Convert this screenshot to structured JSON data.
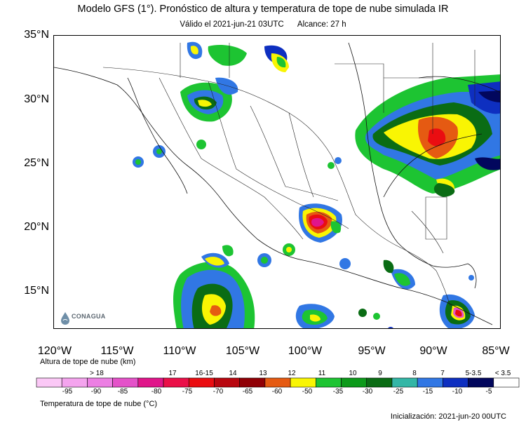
{
  "header": {
    "title": "Modelo GFS (1°). Pronóstico de altura y temperatura de tope de nube simulada IR",
    "valid": "Válido el 2021-jun-21 03UTC",
    "range": "Alcance: 27 h"
  },
  "axes": {
    "lat_labels": [
      "35°N",
      "30°N",
      "25°N",
      "20°N",
      "15°N"
    ],
    "lon_labels": [
      "120°W",
      "115°W",
      "110°W",
      "105°W",
      "100°W",
      "95°W",
      "90°W",
      "85°W"
    ]
  },
  "colorbar": {
    "height_title": "Altura de tope de nube (km)",
    "temp_title": "Temperatura de tope de nube (°C)",
    "height_labels": [
      "> 18",
      "17",
      "16-15",
      "14",
      "13",
      "12",
      "11",
      "10",
      "9",
      "8",
      "7",
      "5-3.5",
      "< 3.5"
    ],
    "temp_labels": [
      "-95",
      "-90",
      "-85",
      "-80",
      "-75",
      "-70",
      "-65",
      "-60",
      "-50",
      "-35",
      "-30",
      "-25",
      "-15",
      "-10",
      "-5"
    ],
    "colors": [
      "#fbc8f6",
      "#f4a4ee",
      "#ec7fe3",
      "#e452c9",
      "#e0158a",
      "#ea0f48",
      "#ea0d11",
      "#b8060f",
      "#900006",
      "#e55a12",
      "#f9f503",
      "#1dc432",
      "#0c9a1a",
      "#0a6c14",
      "#33b6a6",
      "#3177e4",
      "#0e2fc0",
      "#02075d",
      "#ffffff"
    ]
  },
  "logo": {
    "name": "CONAGUA",
    "icon": "conagua-drop-logo"
  },
  "footer": {
    "init": "Inicialización: 2021-jun-20 00UTC"
  }
}
